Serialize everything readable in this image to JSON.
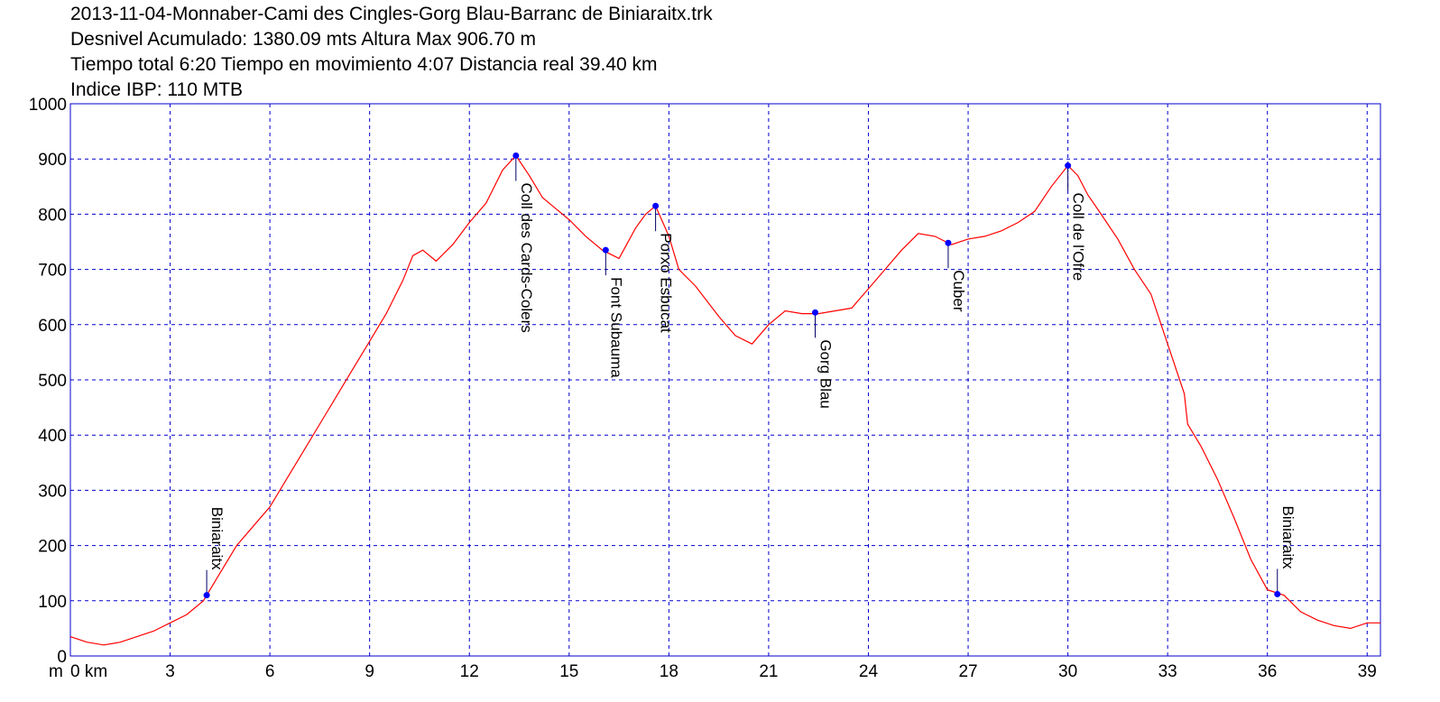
{
  "header": {
    "line1": "2013-11-04-Monnaber-Cami des Cingles-Gorg Blau-Barranc de Biniaraitx.trk",
    "line2": "Desnivel Acumulado: 1380.09 mts  Altura Max 906.70 m",
    "line3": "Tiempo total 6:20 Tiempo en movimiento 4:07 Distancia real 39.40 km",
    "line4": "Indice IBP: 110 MTB"
  },
  "chart_data": {
    "type": "line",
    "title": "2013-11-04-Monnaber-Cami des Cingles-Gorg Blau-Barranc de Biniaraitx.trk",
    "xlabel": "km",
    "ylabel": "m",
    "xlim": [
      0,
      39.4
    ],
    "ylim": [
      0,
      1000
    ],
    "grid": true,
    "x_ticks": [
      {
        "v": 0,
        "label": "0 km"
      },
      {
        "v": 3,
        "label": "3"
      },
      {
        "v": 6,
        "label": "6"
      },
      {
        "v": 9,
        "label": "9"
      },
      {
        "v": 12,
        "label": "12"
      },
      {
        "v": 15,
        "label": "15"
      },
      {
        "v": 18,
        "label": "18"
      },
      {
        "v": 21,
        "label": "21"
      },
      {
        "v": 24,
        "label": "24"
      },
      {
        "v": 27,
        "label": "27"
      },
      {
        "v": 30,
        "label": "30"
      },
      {
        "v": 33,
        "label": "33"
      },
      {
        "v": 36,
        "label": "36"
      },
      {
        "v": 39,
        "label": "39"
      }
    ],
    "y_ticks": [
      {
        "v": 0,
        "label": "0"
      },
      {
        "v": 100,
        "label": "100"
      },
      {
        "v": 200,
        "label": "200"
      },
      {
        "v": 300,
        "label": "300"
      },
      {
        "v": 400,
        "label": "400"
      },
      {
        "v": 500,
        "label": "500"
      },
      {
        "v": 600,
        "label": "600"
      },
      {
        "v": 700,
        "label": "700"
      },
      {
        "v": 800,
        "label": "800"
      },
      {
        "v": 900,
        "label": "900"
      },
      {
        "v": 1000,
        "label": "1000"
      }
    ],
    "y_unit_label": "m",
    "line_color": "#ff0000",
    "grid_color": "#0000cc",
    "marker_color": "#0000ff",
    "series": [
      {
        "points": [
          [
            0,
            35
          ],
          [
            0.5,
            25
          ],
          [
            1,
            20
          ],
          [
            1.5,
            25
          ],
          [
            2,
            35
          ],
          [
            2.5,
            45
          ],
          [
            3,
            60
          ],
          [
            3.5,
            75
          ],
          [
            4,
            100
          ],
          [
            4.1,
            110
          ],
          [
            4.5,
            150
          ],
          [
            5,
            200
          ],
          [
            5.5,
            235
          ],
          [
            6,
            270
          ],
          [
            6.5,
            320
          ],
          [
            7,
            370
          ],
          [
            7.5,
            420
          ],
          [
            8,
            470
          ],
          [
            8.5,
            520
          ],
          [
            9,
            570
          ],
          [
            9.5,
            620
          ],
          [
            10,
            680
          ],
          [
            10.3,
            725
          ],
          [
            10.6,
            735
          ],
          [
            11,
            715
          ],
          [
            11.5,
            745
          ],
          [
            12,
            785
          ],
          [
            12.5,
            820
          ],
          [
            13,
            880
          ],
          [
            13.4,
            906
          ],
          [
            13.8,
            870
          ],
          [
            14.2,
            830
          ],
          [
            14.6,
            810
          ],
          [
            15,
            790
          ],
          [
            15.5,
            760
          ],
          [
            16,
            735
          ],
          [
            16.5,
            720
          ],
          [
            17,
            775
          ],
          [
            17.3,
            800
          ],
          [
            17.6,
            815
          ],
          [
            18,
            760
          ],
          [
            18.3,
            700
          ],
          [
            18.8,
            670
          ],
          [
            19.5,
            615
          ],
          [
            20,
            580
          ],
          [
            20.5,
            565
          ],
          [
            21,
            600
          ],
          [
            21.5,
            625
          ],
          [
            22,
            620
          ],
          [
            22.5,
            620
          ],
          [
            23,
            625
          ],
          [
            23.5,
            630
          ],
          [
            24,
            665
          ],
          [
            24.5,
            700
          ],
          [
            25,
            735
          ],
          [
            25.5,
            765
          ],
          [
            26,
            760
          ],
          [
            26.5,
            745
          ],
          [
            27,
            755
          ],
          [
            27.5,
            760
          ],
          [
            28,
            770
          ],
          [
            28.5,
            785
          ],
          [
            29,
            805
          ],
          [
            29.5,
            850
          ],
          [
            30,
            888
          ],
          [
            30.3,
            870
          ],
          [
            30.6,
            835
          ],
          [
            31,
            800
          ],
          [
            31.5,
            755
          ],
          [
            32,
            700
          ],
          [
            32.5,
            655
          ],
          [
            33,
            565
          ],
          [
            33.5,
            475
          ],
          [
            33.6,
            420
          ],
          [
            34,
            380
          ],
          [
            34.5,
            320
          ],
          [
            35,
            250
          ],
          [
            35.5,
            175
          ],
          [
            36,
            120
          ],
          [
            36.5,
            110
          ],
          [
            37,
            80
          ],
          [
            37.5,
            65
          ],
          [
            38,
            55
          ],
          [
            38.5,
            50
          ],
          [
            39,
            60
          ],
          [
            39.4,
            60
          ]
        ]
      }
    ],
    "waypoints": [
      {
        "name": "Biniaraitx",
        "x": 4.1,
        "y": 110,
        "label_pos": "above"
      },
      {
        "name": "Coll des Cards-Colers",
        "x": 13.4,
        "y": 906,
        "label_pos": "below"
      },
      {
        "name": "Font Subauma",
        "x": 16.1,
        "y": 735,
        "label_pos": "below"
      },
      {
        "name": "Porxo Esbucat",
        "x": 17.6,
        "y": 815,
        "label_pos": "below"
      },
      {
        "name": "Gorg Blau",
        "x": 22.4,
        "y": 622,
        "label_pos": "below"
      },
      {
        "name": "Cuber",
        "x": 26.4,
        "y": 748,
        "label_pos": "below"
      },
      {
        "name": "Coll de l'Ofre",
        "x": 30,
        "y": 888,
        "label_pos": "below"
      },
      {
        "name": "Biniaraitx",
        "x": 36.3,
        "y": 112,
        "label_pos": "above"
      }
    ]
  }
}
